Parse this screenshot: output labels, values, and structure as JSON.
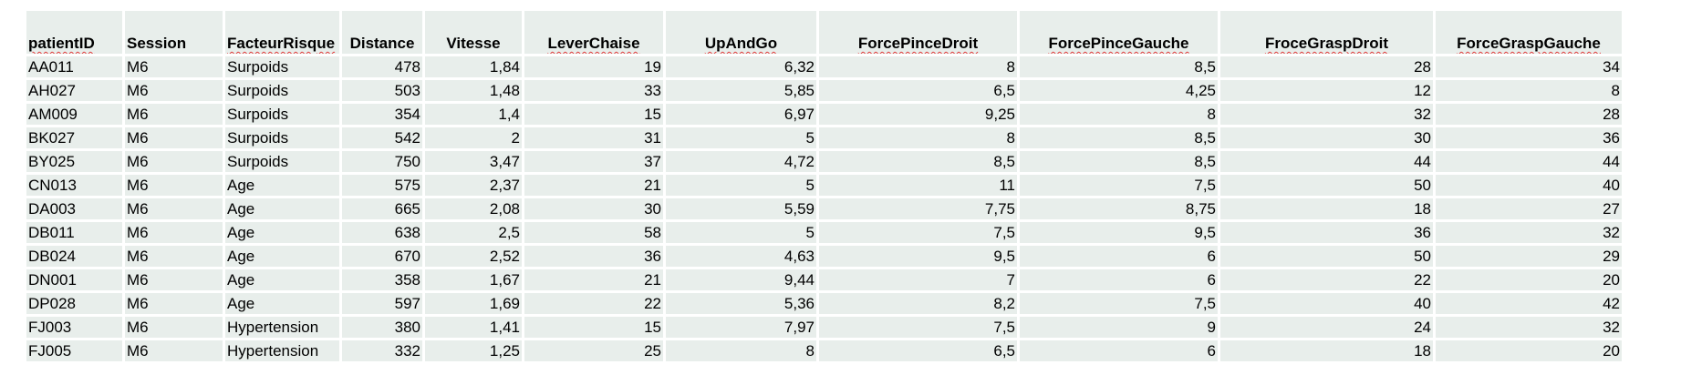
{
  "columns": [
    {
      "label": "patientID",
      "align": "left",
      "squiggle": true
    },
    {
      "label": "Session",
      "align": "left",
      "squiggle": false
    },
    {
      "label": "FacteurRisque",
      "align": "left",
      "squiggle": true
    },
    {
      "label": "Distance",
      "align": "center",
      "squiggle": false
    },
    {
      "label": "Vitesse",
      "align": "center",
      "squiggle": false
    },
    {
      "label": "LeverChaise",
      "align": "center",
      "squiggle": true
    },
    {
      "label": "UpAndGo",
      "align": "center",
      "squiggle": true
    },
    {
      "label": "ForcePinceDroit",
      "align": "center",
      "squiggle": true
    },
    {
      "label": "ForcePinceGauche",
      "align": "center",
      "squiggle": true
    },
    {
      "label": "FroceGraspDroit",
      "align": "center",
      "squiggle": true
    },
    {
      "label": "ForceGraspGauche",
      "align": "center",
      "squiggle": true
    }
  ],
  "rows": [
    [
      "AA011",
      "M6",
      "Surpoids",
      "478",
      "1,84",
      "19",
      "6,32",
      "8",
      "8,5",
      "28",
      "34"
    ],
    [
      "AH027",
      "M6",
      "Surpoids",
      "503",
      "1,48",
      "33",
      "5,85",
      "6,5",
      "4,25",
      "12",
      "8"
    ],
    [
      "AM009",
      "M6",
      "Surpoids",
      "354",
      "1,4",
      "15",
      "6,97",
      "9,25",
      "8",
      "32",
      "28"
    ],
    [
      "BK027",
      "M6",
      "Surpoids",
      "542",
      "2",
      "31",
      "5",
      "8",
      "8,5",
      "30",
      "36"
    ],
    [
      "BY025",
      "M6",
      "Surpoids",
      "750",
      "3,47",
      "37",
      "4,72",
      "8,5",
      "8,5",
      "44",
      "44"
    ],
    [
      "CN013",
      "M6",
      "Age",
      "575",
      "2,37",
      "21",
      "5",
      "11",
      "7,5",
      "50",
      "40"
    ],
    [
      "DA003",
      "M6",
      "Age",
      "665",
      "2,08",
      "30",
      "5,59",
      "7,75",
      "8,75",
      "18",
      "27"
    ],
    [
      "DB011",
      "M6",
      "Age",
      "638",
      "2,5",
      "58",
      "5",
      "7,5",
      "9,5",
      "36",
      "32"
    ],
    [
      "DB024",
      "M6",
      "Age",
      "670",
      "2,52",
      "36",
      "4,63",
      "9,5",
      "6",
      "50",
      "29"
    ],
    [
      "DN001",
      "M6",
      "Age",
      "358",
      "1,67",
      "21",
      "9,44",
      "7",
      "6",
      "22",
      "20"
    ],
    [
      "DP028",
      "M6",
      "Age",
      "597",
      "1,69",
      "22",
      "5,36",
      "8,2",
      "7,5",
      "40",
      "42"
    ],
    [
      "FJ003",
      "M6",
      "Hypertension",
      "380",
      "1,41",
      "15",
      "7,97",
      "7,5",
      "9",
      "24",
      "32"
    ],
    [
      "FJ005",
      "M6",
      "Hypertension",
      "332",
      "1,25",
      "25",
      "8",
      "6,5",
      "6",
      "18",
      "20"
    ]
  ],
  "colors": {
    "cell_background": "#e8eeeb",
    "grid_line": "#ffffff",
    "spell_underline": "#e03c3c"
  }
}
